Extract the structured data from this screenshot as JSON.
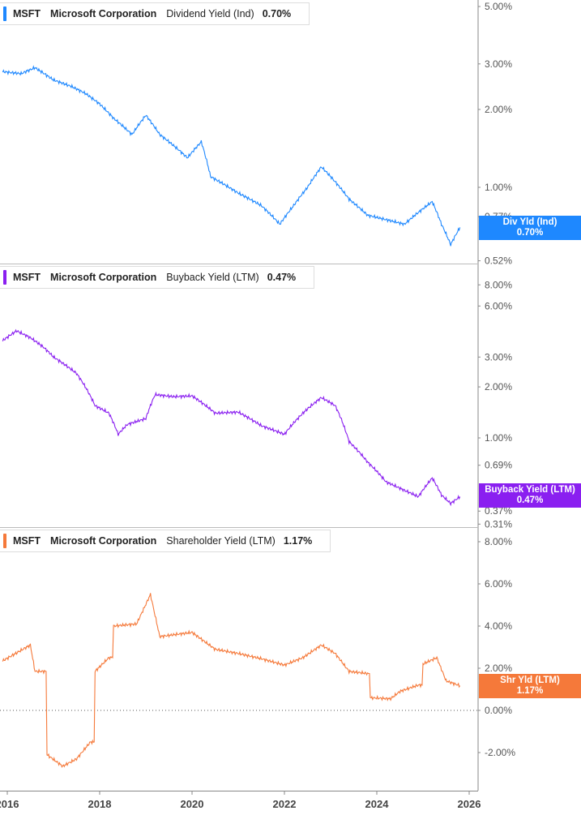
{
  "chart_data": [
    {
      "type": "line",
      "scale": "log",
      "ticker": "MSFT",
      "company": "Microsoft Corporation",
      "metric": "Dividend Yield (Ind)",
      "current": "0.70%",
      "flag_label": "Div Yld (Ind)",
      "color": "#1e88ff",
      "yticks": [
        "5.00%",
        "3.00%",
        "2.00%",
        "1.00%",
        "0.77%",
        "0.52%"
      ],
      "ytick_values": [
        5,
        3,
        2,
        1,
        0.77,
        0.52
      ],
      "x": [
        2015.9,
        2016.3,
        2016.6,
        2017.0,
        2017.4,
        2017.7,
        2018.0,
        2018.3,
        2018.7,
        2019.0,
        2019.3,
        2019.6,
        2019.9,
        2020.2,
        2020.4,
        2020.8,
        2021.0,
        2021.5,
        2021.9,
        2022.2,
        2022.5,
        2022.8,
        2023.0,
        2023.4,
        2023.8,
        2024.2,
        2024.6,
        2024.9,
        2025.2,
        2025.4,
        2025.6,
        2025.8
      ],
      "y": [
        2.8,
        2.75,
        2.9,
        2.6,
        2.45,
        2.3,
        2.1,
        1.85,
        1.6,
        1.9,
        1.6,
        1.45,
        1.3,
        1.5,
        1.1,
        1.0,
        0.95,
        0.85,
        0.72,
        0.85,
        1.0,
        1.2,
        1.1,
        0.9,
        0.78,
        0.75,
        0.72,
        0.8,
        0.88,
        0.72,
        0.6,
        0.7
      ]
    },
    {
      "type": "line",
      "scale": "log",
      "ticker": "MSFT",
      "company": "Microsoft Corporation",
      "metric": "Buyback Yield (LTM)",
      "current": "0.47%",
      "flag_label": "Buyback Yield (LTM)",
      "color": "#8a1ff0",
      "yticks": [
        "8.00%",
        "6.00%",
        "3.00%",
        "2.00%",
        "1.00%",
        "0.69%",
        "0.37%",
        "0.31%"
      ],
      "ytick_values": [
        8,
        6,
        3,
        2,
        1,
        0.69,
        0.37,
        0.31
      ],
      "x": [
        2015.9,
        2016.2,
        2016.5,
        2016.8,
        2017.0,
        2017.5,
        2017.9,
        2018.2,
        2018.4,
        2018.6,
        2019.0,
        2019.2,
        2019.6,
        2020.0,
        2020.5,
        2021.0,
        2021.5,
        2022.0,
        2022.4,
        2022.8,
        2023.1,
        2023.4,
        2023.8,
        2024.2,
        2024.6,
        2024.9,
        2025.2,
        2025.4,
        2025.6,
        2025.8
      ],
      "y": [
        3.75,
        4.28,
        3.9,
        3.4,
        3.0,
        2.4,
        1.55,
        1.4,
        1.05,
        1.2,
        1.3,
        1.8,
        1.75,
        1.77,
        1.4,
        1.42,
        1.18,
        1.05,
        1.4,
        1.73,
        1.55,
        0.95,
        0.72,
        0.55,
        0.49,
        0.45,
        0.58,
        0.46,
        0.41,
        0.45
      ]
    },
    {
      "type": "line",
      "scale": "linear",
      "ticker": "MSFT",
      "company": "Microsoft Corporation",
      "metric": "Shareholder Yield (LTM)",
      "current": "1.17%",
      "flag_label": "Shr Yld (LTM)",
      "color": "#f5793a",
      "yticks": [
        "8.00%",
        "6.00%",
        "4.00%",
        "2.00%",
        "0.00%",
        "-2.00%"
      ],
      "ytick_values": [
        8,
        6,
        4,
        2,
        0,
        -2
      ],
      "x": [
        2015.9,
        2016.5,
        2016.6,
        2016.84,
        2016.86,
        2017.2,
        2017.5,
        2017.8,
        2017.88,
        2017.9,
        2018.2,
        2018.28,
        2018.3,
        2018.8,
        2019.1,
        2019.3,
        2020.0,
        2020.5,
        2021.0,
        2021.5,
        2022.0,
        2022.4,
        2022.8,
        2023.1,
        2023.4,
        2023.8,
        2023.84,
        2023.86,
        2024.3,
        2024.5,
        2024.9,
        2024.98,
        2025.0,
        2025.3,
        2025.5,
        2025.8
      ],
      "y": [
        2.35,
        3.1,
        1.85,
        1.85,
        -2.1,
        -2.65,
        -2.3,
        -1.5,
        -1.5,
        1.85,
        2.5,
        2.5,
        4.0,
        4.1,
        5.5,
        3.5,
        3.7,
        2.9,
        2.7,
        2.45,
        2.15,
        2.5,
        3.1,
        2.7,
        1.85,
        1.75,
        1.75,
        0.6,
        0.55,
        0.9,
        1.2,
        1.2,
        2.2,
        2.5,
        1.4,
        1.17
      ]
    }
  ],
  "xaxis": {
    "ticks": [
      "2016",
      "2018",
      "2020",
      "2022",
      "2024",
      "2026"
    ],
    "tick_values": [
      2016,
      2018,
      2020,
      2022,
      2024,
      2026
    ]
  }
}
